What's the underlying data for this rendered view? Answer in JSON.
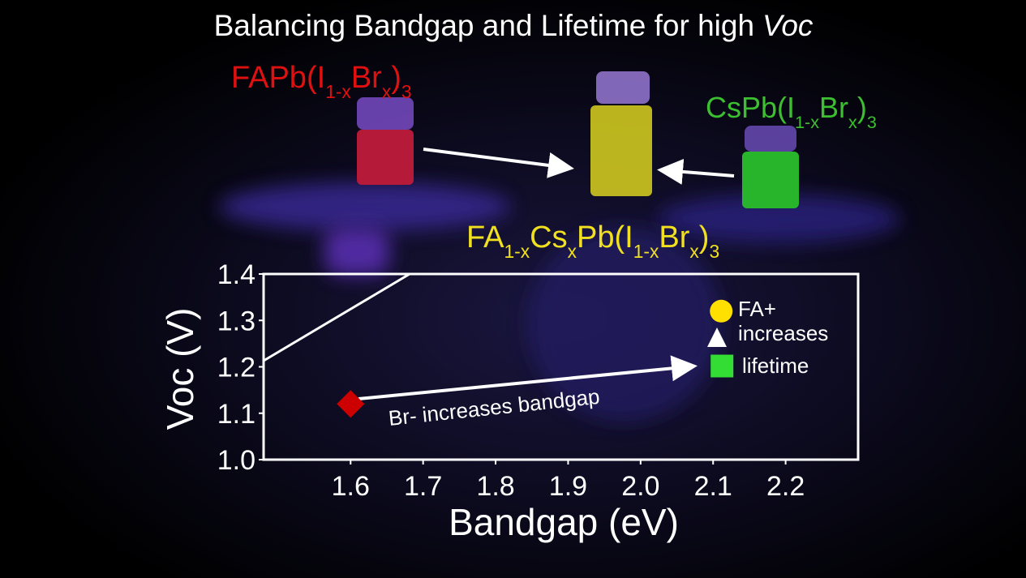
{
  "title": [
    "Balancing Bandgap and Lifetime for high",
    "Voc"
  ],
  "formulas": [
    {
      "color": "#e01010",
      "segments": [
        {
          "text": "FAPb(I"
        },
        {
          "text": "1-x",
          "sub": true
        },
        {
          "text": "Br"
        },
        {
          "text": "x",
          "sub": true
        },
        {
          "text": ")"
        },
        {
          "text": "3",
          "sub": true
        }
      ]
    },
    {
      "color": "#3cc030",
      "segments": [
        {
          "text": "CsPb(I"
        },
        {
          "text": "1-x",
          "sub": true
        },
        {
          "text": "Br"
        },
        {
          "text": "x",
          "sub": true
        },
        {
          "text": ")"
        },
        {
          "text": "3",
          "sub": true
        }
      ]
    },
    {
      "color": "#f0e020",
      "segments": [
        {
          "text": "FA"
        },
        {
          "text": "1-x",
          "sub": true
        },
        {
          "text": "Cs"
        },
        {
          "text": "x",
          "sub": true
        },
        {
          "text": "Pb(I"
        },
        {
          "text": "1-x",
          "sub": true
        },
        {
          "text": "Br"
        },
        {
          "text": "x",
          "sub": true
        },
        {
          "text": ")"
        },
        {
          "text": "3",
          "sub": true
        }
      ]
    }
  ],
  "chart_data": {
    "type": "scatter",
    "x_label": "Bandgap (eV)",
    "y_label": "Voc (V)",
    "series": [
      {
        "name": null,
        "color": "#cc0000",
        "marker": "diamond",
        "x": [
          1.6
        ],
        "values": [
          1.12
        ]
      },
      {
        "name": null,
        "color": "#ffe000",
        "marker": "circle",
        "x": [
          2.1
        ],
        "values": [
          1.32
        ]
      },
      {
        "name": null,
        "color": "#33dd33",
        "marker": "square",
        "x": [
          2.1
        ],
        "values": [
          1.2
        ]
      }
    ],
    "xlim": [
      1.48,
      2.3
    ],
    "xticks": [
      1.6,
      1.7,
      1.8,
      1.9,
      {
        "value": 2.0,
        "label": "2.0"
      },
      2.1,
      2.2
    ],
    "ylim": [
      1.0,
      1.4
    ],
    "yticks": [
      {
        "value": 1.0,
        "label": "1.0"
      },
      1.1,
      1.2,
      1.3,
      1.4
    ],
    "annotations": [
      "Br- increases bandgap",
      "FA+",
      "increases",
      "lifetime"
    ]
  }
}
